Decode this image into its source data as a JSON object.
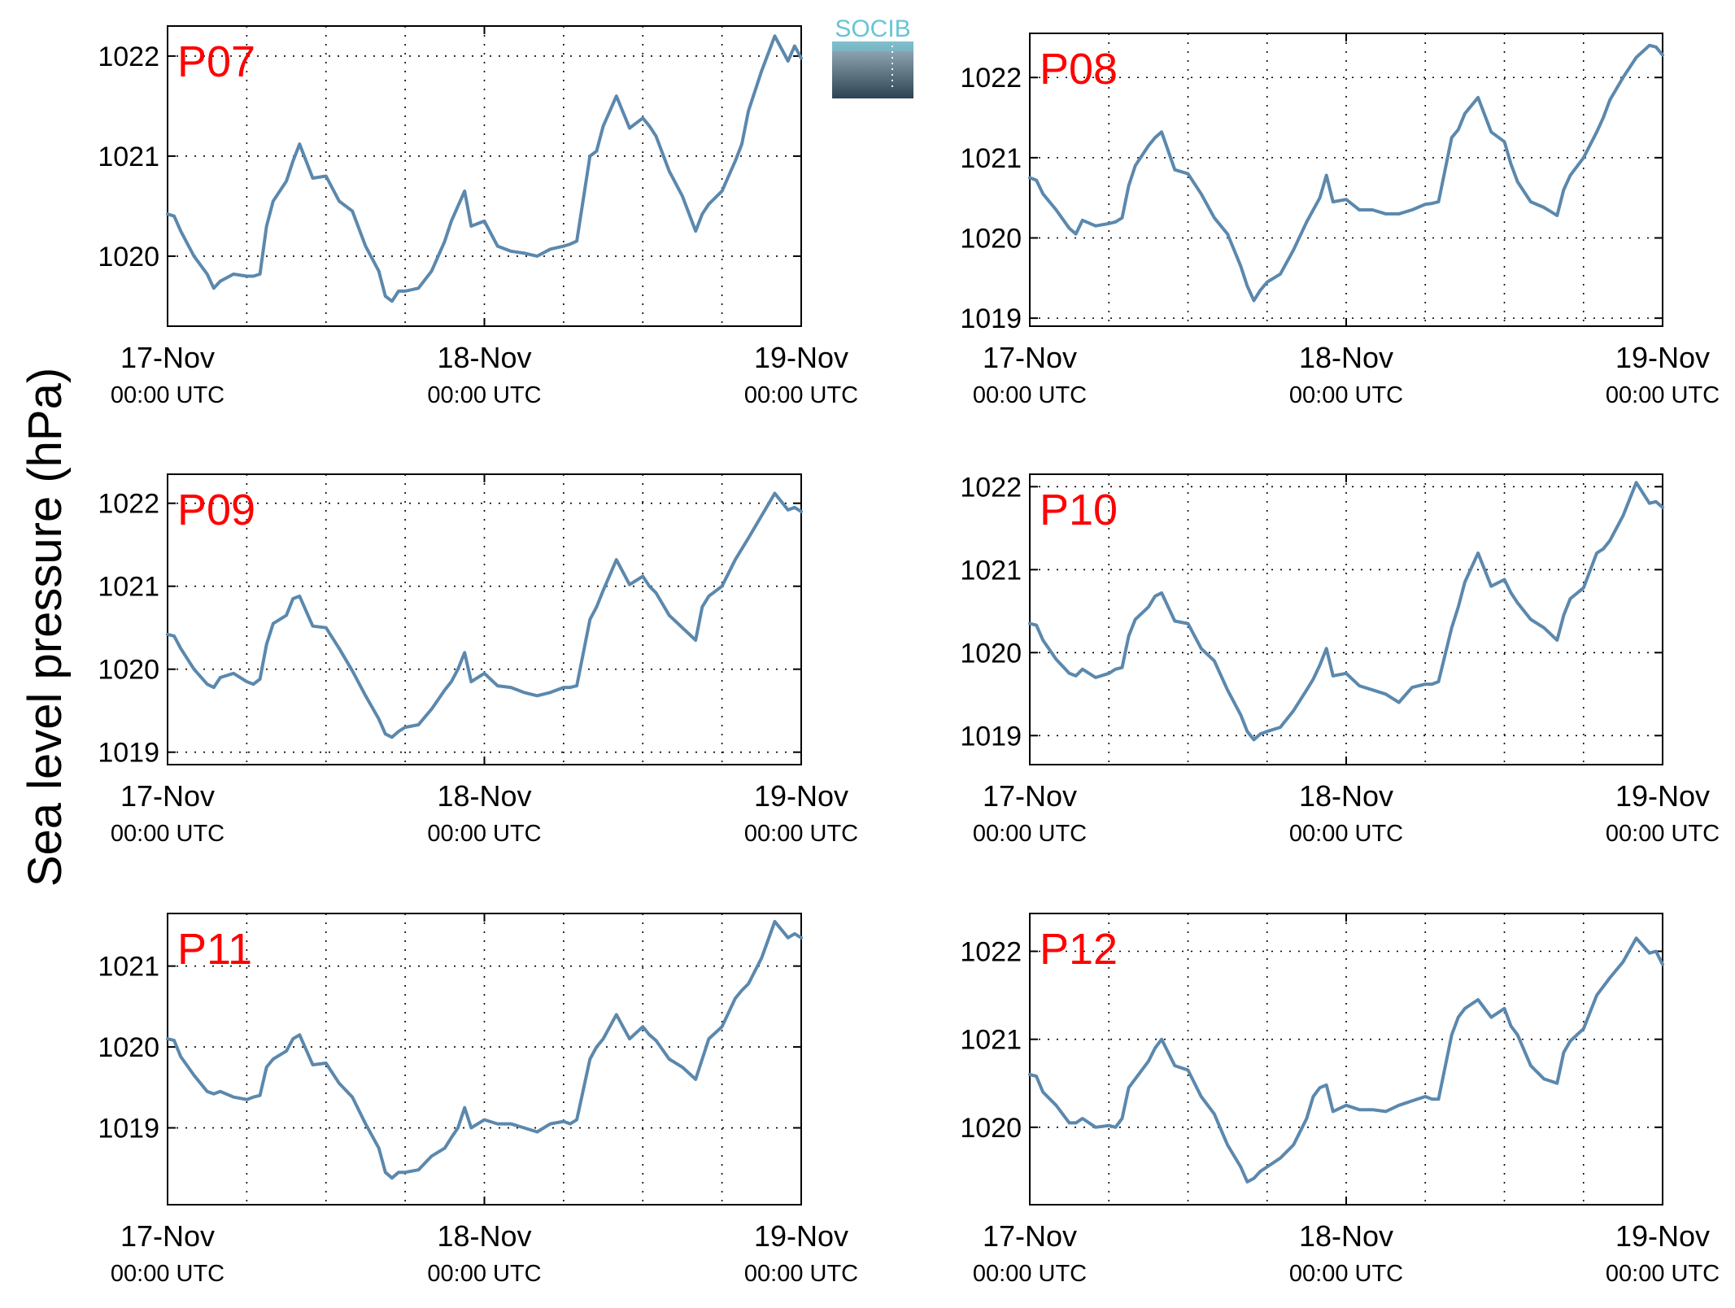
{
  "figure": {
    "ylabel": "Sea level pressure (hPa)",
    "logo_text": "SOCIB",
    "x_ticks": [
      {
        "date": "17-Nov",
        "time": "00:00 UTC",
        "hours": 0
      },
      {
        "date": "18-Nov",
        "time": "00:00 UTC",
        "hours": 24
      },
      {
        "date": "19-Nov",
        "time": "00:00 UTC",
        "hours": 48
      }
    ],
    "x_minor_grid_hours": [
      6,
      12,
      18,
      30,
      36,
      42
    ]
  },
  "colors": {
    "series": "#5b88ad",
    "title": "#ff0000",
    "logo_top": "#67c5d6",
    "logo_bottom": "#2e4352"
  },
  "chart_data": [
    {
      "type": "line",
      "title": "P07",
      "xlabel": "",
      "ylabel": "Sea level pressure (hPa)",
      "xlim": [
        0,
        48
      ],
      "ylim": [
        1019.3,
        1022.3
      ],
      "yticks": [
        1020,
        1021,
        1022
      ],
      "grid": true,
      "x": [
        0,
        0.5,
        1,
        2,
        3,
        3.5,
        4,
        5,
        6,
        6.5,
        7,
        7.5,
        8,
        9,
        9.5,
        10,
        11,
        12,
        13,
        14,
        15,
        16,
        16.5,
        17,
        17.5,
        18,
        19,
        20,
        21,
        21.5,
        22,
        22.5,
        23,
        24,
        25,
        26,
        27,
        28,
        29,
        30,
        30.5,
        31,
        32,
        32.5,
        33,
        34,
        35,
        36,
        36.5,
        37,
        38,
        39,
        40,
        40.5,
        41,
        42,
        43,
        43.5,
        44,
        45,
        46,
        47,
        47.5,
        48
      ],
      "series": [
        {
          "values": [
            1020.42,
            1020.4,
            1020.25,
            1020.0,
            1019.82,
            1019.68,
            1019.75,
            1019.82,
            1019.8,
            1019.8,
            1019.82,
            1020.3,
            1020.55,
            1020.75,
            1020.95,
            1021.12,
            1020.78,
            1020.8,
            1020.55,
            1020.45,
            1020.1,
            1019.85,
            1019.6,
            1019.55,
            1019.65,
            1019.65,
            1019.68,
            1019.85,
            1020.15,
            1020.35,
            1020.5,
            1020.65,
            1020.3,
            1020.35,
            1020.1,
            1020.05,
            1020.03,
            1020.0,
            1020.07,
            1020.1,
            1020.12,
            1020.15,
            1021.0,
            1021.05,
            1021.3,
            1021.6,
            1021.28,
            1021.38,
            1021.3,
            1021.2,
            1020.85,
            1020.6,
            1020.25,
            1020.42,
            1020.52,
            1020.65,
            1020.95,
            1021.12,
            1021.45,
            1021.85,
            1022.2,
            1021.95,
            1022.1,
            1021.98
          ]
        }
      ]
    },
    {
      "type": "line",
      "title": "P08",
      "xlabel": "",
      "ylabel": "Sea level pressure (hPa)",
      "xlim": [
        0,
        48
      ],
      "ylim": [
        1018.9,
        1022.55
      ],
      "yticks": [
        1019,
        1020,
        1021,
        1022
      ],
      "grid": true,
      "x": [
        0,
        0.5,
        1,
        2,
        3,
        3.5,
        4,
        5,
        6,
        6.5,
        7,
        7.5,
        8,
        9,
        9.5,
        10,
        11,
        12,
        13,
        14,
        15,
        16,
        16.5,
        17,
        17.5,
        18,
        19,
        20,
        21,
        21.5,
        22,
        22.5,
        23,
        24,
        25,
        26,
        27,
        28,
        29,
        30,
        30.5,
        31,
        32,
        32.5,
        33,
        34,
        35,
        36,
        36.5,
        37,
        38,
        39,
        40,
        40.5,
        41,
        42,
        43,
        43.5,
        44,
        45,
        46,
        47,
        47.5,
        48
      ],
      "series": [
        {
          "values": [
            1020.75,
            1020.72,
            1020.55,
            1020.35,
            1020.12,
            1020.05,
            1020.22,
            1020.15,
            1020.18,
            1020.2,
            1020.25,
            1020.65,
            1020.9,
            1021.15,
            1021.25,
            1021.32,
            1020.85,
            1020.8,
            1020.55,
            1020.25,
            1020.05,
            1019.65,
            1019.4,
            1019.22,
            1019.35,
            1019.45,
            1019.55,
            1019.85,
            1020.2,
            1020.35,
            1020.5,
            1020.78,
            1020.45,
            1020.48,
            1020.35,
            1020.35,
            1020.3,
            1020.3,
            1020.35,
            1020.42,
            1020.43,
            1020.45,
            1021.25,
            1021.35,
            1021.55,
            1021.75,
            1021.32,
            1021.2,
            1020.92,
            1020.7,
            1020.45,
            1020.38,
            1020.28,
            1020.6,
            1020.78,
            1021.0,
            1021.32,
            1021.5,
            1021.72,
            1022.0,
            1022.25,
            1022.4,
            1022.38,
            1022.28
          ]
        }
      ]
    },
    {
      "type": "line",
      "title": "P09",
      "xlabel": "",
      "ylabel": "Sea level pressure (hPa)",
      "xlim": [
        0,
        48
      ],
      "ylim": [
        1018.85,
        1022.35
      ],
      "yticks": [
        1019,
        1020,
        1021,
        1022
      ],
      "grid": true,
      "x": [
        0,
        0.5,
        1,
        2,
        3,
        3.5,
        4,
        5,
        6,
        6.5,
        7,
        7.5,
        8,
        9,
        9.5,
        10,
        11,
        12,
        13,
        14,
        15,
        16,
        16.5,
        17,
        17.5,
        18,
        19,
        20,
        21,
        21.5,
        22,
        22.5,
        23,
        24,
        25,
        26,
        27,
        28,
        29,
        30,
        30.5,
        31,
        32,
        32.5,
        33,
        34,
        35,
        36,
        36.5,
        37,
        38,
        39,
        40,
        40.5,
        41,
        42,
        43,
        43.5,
        44,
        45,
        46,
        47,
        47.5,
        48
      ],
      "series": [
        {
          "values": [
            1020.42,
            1020.4,
            1020.25,
            1020.0,
            1019.82,
            1019.78,
            1019.9,
            1019.95,
            1019.85,
            1019.82,
            1019.88,
            1020.3,
            1020.55,
            1020.65,
            1020.85,
            1020.88,
            1020.52,
            1020.5,
            1020.25,
            1019.98,
            1019.68,
            1019.4,
            1019.22,
            1019.18,
            1019.25,
            1019.3,
            1019.33,
            1019.52,
            1019.75,
            1019.85,
            1020.0,
            1020.2,
            1019.85,
            1019.95,
            1019.8,
            1019.78,
            1019.72,
            1019.68,
            1019.72,
            1019.78,
            1019.78,
            1019.8,
            1020.6,
            1020.75,
            1020.95,
            1021.32,
            1021.02,
            1021.12,
            1021.0,
            1020.92,
            1020.65,
            1020.5,
            1020.35,
            1020.75,
            1020.88,
            1021.0,
            1021.32,
            1021.45,
            1021.58,
            1021.85,
            1022.12,
            1021.92,
            1021.95,
            1021.9
          ]
        }
      ]
    },
    {
      "type": "line",
      "title": "P10",
      "xlabel": "",
      "ylabel": "Sea level pressure (hPa)",
      "xlim": [
        0,
        48
      ],
      "ylim": [
        1018.65,
        1022.15
      ],
      "yticks": [
        1019,
        1020,
        1021,
        1022
      ],
      "grid": true,
      "x": [
        0,
        0.5,
        1,
        2,
        3,
        3.5,
        4,
        5,
        6,
        6.5,
        7,
        7.5,
        8,
        9,
        9.5,
        10,
        11,
        12,
        13,
        14,
        15,
        16,
        16.5,
        17,
        17.5,
        18,
        19,
        20,
        21,
        21.5,
        22,
        22.5,
        23,
        24,
        25,
        26,
        27,
        28,
        29,
        30,
        30.5,
        31,
        32,
        32.5,
        33,
        34,
        35,
        36,
        36.5,
        37,
        38,
        39,
        40,
        40.5,
        41,
        42,
        43,
        43.5,
        44,
        45,
        46,
        47,
        47.5,
        48
      ],
      "series": [
        {
          "values": [
            1020.35,
            1020.33,
            1020.15,
            1019.92,
            1019.75,
            1019.72,
            1019.8,
            1019.7,
            1019.75,
            1019.8,
            1019.82,
            1020.2,
            1020.4,
            1020.55,
            1020.68,
            1020.72,
            1020.38,
            1020.35,
            1020.05,
            1019.9,
            1019.55,
            1019.25,
            1019.05,
            1018.95,
            1019.02,
            1019.05,
            1019.1,
            1019.3,
            1019.55,
            1019.68,
            1019.85,
            1020.05,
            1019.72,
            1019.75,
            1019.6,
            1019.55,
            1019.5,
            1019.4,
            1019.58,
            1019.62,
            1019.62,
            1019.65,
            1020.3,
            1020.55,
            1020.85,
            1021.2,
            1020.8,
            1020.88,
            1020.72,
            1020.6,
            1020.4,
            1020.3,
            1020.15,
            1020.45,
            1020.65,
            1020.78,
            1021.2,
            1021.25,
            1021.35,
            1021.65,
            1022.05,
            1021.8,
            1021.82,
            1021.75
          ]
        }
      ]
    },
    {
      "type": "line",
      "title": "P11",
      "xlabel": "",
      "ylabel": "Sea level pressure (hPa)",
      "xlim": [
        0,
        48
      ],
      "ylim": [
        1018.05,
        1021.65
      ],
      "yticks": [
        1019,
        1020,
        1021
      ],
      "grid": true,
      "x": [
        0,
        0.5,
        1,
        2,
        3,
        3.5,
        4,
        5,
        6,
        6.5,
        7,
        7.5,
        8,
        9,
        9.5,
        10,
        11,
        12,
        13,
        14,
        15,
        16,
        16.5,
        17,
        17.5,
        18,
        19,
        20,
        21,
        21.5,
        22,
        22.5,
        23,
        24,
        25,
        26,
        27,
        28,
        29,
        30,
        30.5,
        31,
        32,
        32.5,
        33,
        34,
        35,
        36,
        36.5,
        37,
        38,
        39,
        40,
        40.5,
        41,
        42,
        43,
        43.5,
        44,
        45,
        46,
        47,
        47.5,
        48
      ],
      "series": [
        {
          "values": [
            1020.1,
            1020.08,
            1019.88,
            1019.65,
            1019.45,
            1019.42,
            1019.45,
            1019.38,
            1019.35,
            1019.38,
            1019.4,
            1019.75,
            1019.85,
            1019.95,
            1020.1,
            1020.15,
            1019.78,
            1019.8,
            1019.55,
            1019.38,
            1019.05,
            1018.75,
            1018.45,
            1018.38,
            1018.45,
            1018.45,
            1018.48,
            1018.65,
            1018.75,
            1018.88,
            1019.0,
            1019.25,
            1019.0,
            1019.1,
            1019.05,
            1019.05,
            1019.0,
            1018.95,
            1019.05,
            1019.08,
            1019.05,
            1019.1,
            1019.85,
            1020.0,
            1020.1,
            1020.4,
            1020.1,
            1020.25,
            1020.15,
            1020.08,
            1019.85,
            1019.75,
            1019.6,
            1019.85,
            1020.1,
            1020.25,
            1020.6,
            1020.7,
            1020.78,
            1021.1,
            1021.55,
            1021.35,
            1021.4,
            1021.35
          ]
        }
      ]
    },
    {
      "type": "line",
      "title": "P12",
      "xlabel": "",
      "ylabel": "Sea level pressure (hPa)",
      "xlim": [
        0,
        48
      ],
      "ylim": [
        1019.12,
        1022.43
      ],
      "yticks": [
        1020,
        1021,
        1022
      ],
      "grid": true,
      "x": [
        0,
        0.5,
        1,
        2,
        3,
        3.5,
        4,
        5,
        6,
        6.5,
        7,
        7.5,
        8,
        9,
        9.5,
        10,
        11,
        12,
        13,
        14,
        15,
        16,
        16.5,
        17,
        17.5,
        18,
        19,
        20,
        21,
        21.5,
        22,
        22.5,
        23,
        24,
        25,
        26,
        27,
        28,
        29,
        30,
        30.5,
        31,
        32,
        32.5,
        33,
        34,
        35,
        36,
        36.5,
        37,
        38,
        39,
        40,
        40.5,
        41,
        42,
        43,
        43.5,
        44,
        45,
        46,
        47,
        47.5,
        48
      ],
      "series": [
        {
          "values": [
            1020.6,
            1020.58,
            1020.4,
            1020.25,
            1020.05,
            1020.05,
            1020.1,
            1020.0,
            1020.02,
            1020.0,
            1020.1,
            1020.45,
            1020.55,
            1020.75,
            1020.9,
            1021.0,
            1020.7,
            1020.65,
            1020.35,
            1020.15,
            1019.8,
            1019.55,
            1019.38,
            1019.42,
            1019.5,
            1019.55,
            1019.65,
            1019.8,
            1020.1,
            1020.35,
            1020.45,
            1020.48,
            1020.18,
            1020.25,
            1020.2,
            1020.2,
            1020.18,
            1020.25,
            1020.3,
            1020.35,
            1020.32,
            1020.32,
            1021.05,
            1021.25,
            1021.35,
            1021.45,
            1021.25,
            1021.35,
            1021.15,
            1021.05,
            1020.7,
            1020.55,
            1020.5,
            1020.85,
            1020.98,
            1021.12,
            1021.5,
            1021.6,
            1021.7,
            1021.88,
            1022.15,
            1021.98,
            1022.0,
            1021.85
          ]
        }
      ]
    }
  ]
}
